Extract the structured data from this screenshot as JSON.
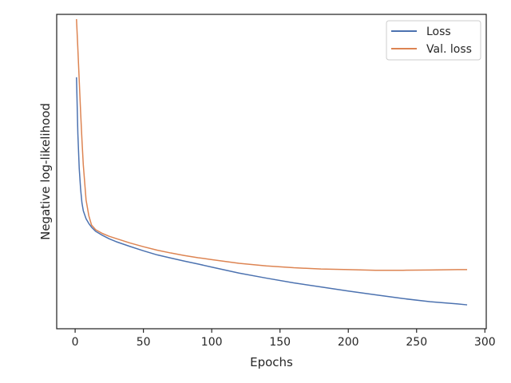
{
  "chart_data": {
    "type": "line",
    "title": "",
    "xlabel": "Epochs",
    "ylabel": "Negative log-likelihood",
    "xlim": [
      -13.5,
      301
    ],
    "ylim": [
      0.0,
      1.0
    ],
    "y_ticks_shown": false,
    "xticks": [
      0,
      50,
      100,
      150,
      200,
      250,
      300
    ],
    "xtick_labels": [
      "0",
      "50",
      "100",
      "150",
      "200",
      "250",
      "300"
    ],
    "grid": false,
    "legend_position": "top-right",
    "series": [
      {
        "name": "Loss",
        "color": "#4c72b0",
        "x": [
          1,
          2,
          3,
          4,
          5,
          6,
          8,
          10,
          12,
          15,
          20,
          25,
          30,
          40,
          50,
          60,
          70,
          80,
          90,
          100,
          120,
          140,
          160,
          180,
          200,
          220,
          240,
          260,
          280,
          287
        ],
        "y": [
          0.8,
          0.62,
          0.51,
          0.445,
          0.4,
          0.375,
          0.35,
          0.335,
          0.323,
          0.31,
          0.297,
          0.286,
          0.277,
          0.262,
          0.248,
          0.235,
          0.225,
          0.215,
          0.206,
          0.196,
          0.177,
          0.161,
          0.146,
          0.133,
          0.12,
          0.108,
          0.096,
          0.086,
          0.079,
          0.076
        ]
      },
      {
        "name": "Val. loss",
        "color": "#dd8452",
        "x": [
          1,
          2,
          3,
          4,
          5,
          6,
          8,
          10,
          12,
          15,
          20,
          25,
          30,
          40,
          50,
          60,
          70,
          80,
          90,
          100,
          120,
          140,
          160,
          180,
          200,
          220,
          240,
          260,
          280,
          287
        ],
        "y": [
          0.985,
          0.89,
          0.79,
          0.69,
          0.6,
          0.52,
          0.41,
          0.36,
          0.33,
          0.315,
          0.303,
          0.294,
          0.287,
          0.273,
          0.261,
          0.25,
          0.241,
          0.233,
          0.226,
          0.22,
          0.208,
          0.2,
          0.194,
          0.19,
          0.188,
          0.186,
          0.186,
          0.187,
          0.188,
          0.188
        ]
      }
    ]
  }
}
